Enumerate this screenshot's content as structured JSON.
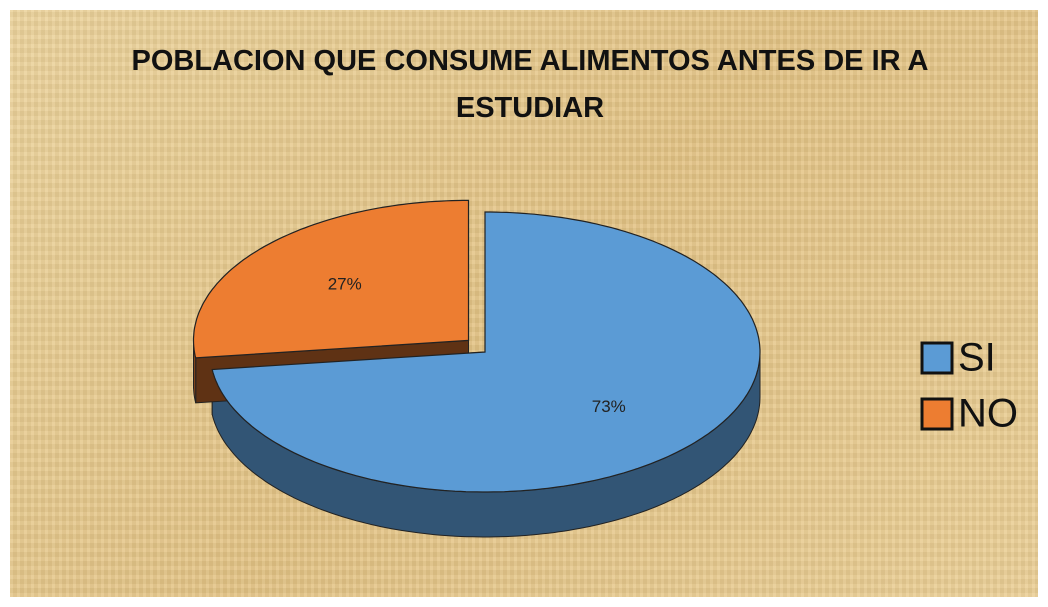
{
  "chart_data": {
    "type": "pie",
    "title": "POBLACION QUE CONSUME ALIMENTOS ANTES DE IR A ESTUDIAR",
    "categories": [
      "SI",
      "NO"
    ],
    "values": [
      73,
      27
    ],
    "value_labels": [
      "73%",
      "27%"
    ],
    "colors": [
      "#5b9bd5",
      "#ed7d31"
    ],
    "legend": "right"
  }
}
